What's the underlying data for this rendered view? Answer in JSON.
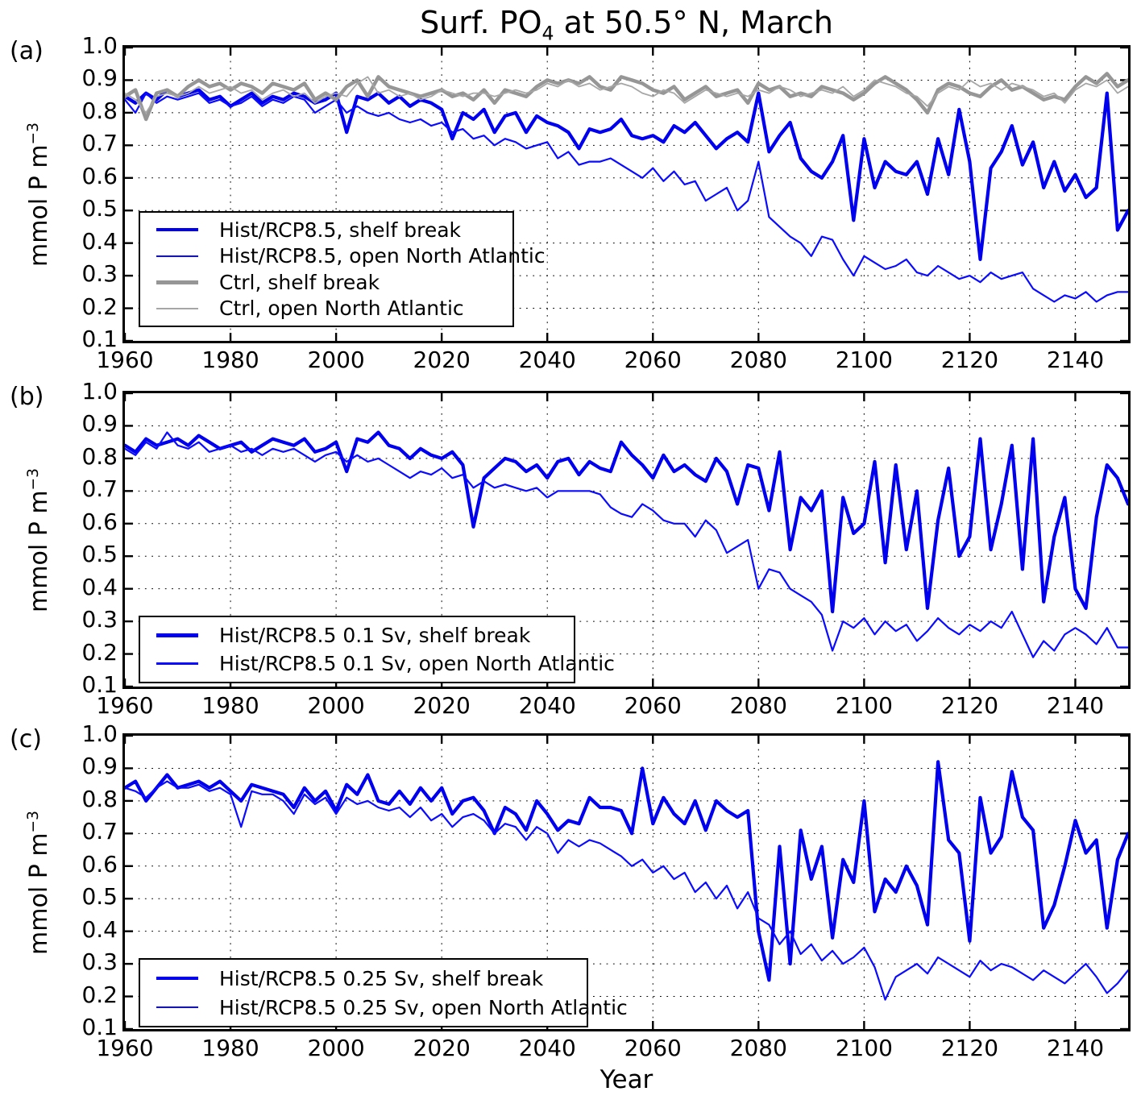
{
  "title": {
    "pre": "Surf. PO",
    "sub": "4",
    "post": " at 50.5° N, March"
  },
  "xlabel": "Year",
  "ylabel": {
    "base": "mmol P m",
    "exp": "−3"
  },
  "axes": {
    "xticks": [
      1960,
      1980,
      2000,
      2020,
      2040,
      2060,
      2080,
      2100,
      2120,
      2140
    ],
    "yticks": [
      0.1,
      0.2,
      0.3,
      0.4,
      0.5,
      0.6,
      0.7,
      0.8,
      0.9,
      1.0
    ],
    "xlim": [
      1960,
      2150
    ],
    "ylim": [
      0.1,
      1.0
    ],
    "grid": "dotted"
  },
  "chart_data": [
    {
      "type": "line",
      "label": "(a)",
      "x_start": 1960,
      "x_step": 2,
      "legend_position": "lower left",
      "series": [
        {
          "name": "hist-rcp85-shelf-break",
          "label": "Hist/RCP8.5, shelf break",
          "color": "#0000ee",
          "width": 4.2,
          "values": [
            0.85,
            0.83,
            0.86,
            0.84,
            0.87,
            0.85,
            0.86,
            0.87,
            0.84,
            0.85,
            0.82,
            0.84,
            0.86,
            0.83,
            0.85,
            0.84,
            0.86,
            0.85,
            0.83,
            0.84,
            0.86,
            0.74,
            0.85,
            0.84,
            0.86,
            0.83,
            0.85,
            0.82,
            0.84,
            0.83,
            0.81,
            0.72,
            0.8,
            0.78,
            0.81,
            0.74,
            0.79,
            0.8,
            0.74,
            0.79,
            0.77,
            0.76,
            0.74,
            0.69,
            0.75,
            0.74,
            0.75,
            0.78,
            0.73,
            0.72,
            0.73,
            0.71,
            0.76,
            0.74,
            0.77,
            0.73,
            0.69,
            0.72,
            0.74,
            0.71,
            0.86,
            0.68,
            0.73,
            0.77,
            0.66,
            0.62,
            0.6,
            0.65,
            0.73,
            0.47,
            0.72,
            0.57,
            0.65,
            0.62,
            0.61,
            0.65,
            0.55,
            0.72,
            0.61,
            0.81,
            0.65,
            0.35,
            0.63,
            0.68,
            0.76,
            0.64,
            0.71,
            0.57,
            0.65,
            0.56,
            0.61,
            0.54,
            0.57,
            0.86,
            0.44,
            0.5
          ]
        },
        {
          "name": "hist-rcp85-open-north-atlantic",
          "label": "Hist/RCP8.5, open North Atlantic",
          "color": "#0b0bff",
          "width": 2.2,
          "values": [
            0.84,
            0.8,
            0.86,
            0.83,
            0.85,
            0.84,
            0.85,
            0.86,
            0.83,
            0.84,
            0.82,
            0.83,
            0.85,
            0.82,
            0.84,
            0.83,
            0.85,
            0.84,
            0.8,
            0.82,
            0.84,
            0.8,
            0.82,
            0.8,
            0.79,
            0.8,
            0.78,
            0.77,
            0.78,
            0.76,
            0.77,
            0.74,
            0.75,
            0.72,
            0.73,
            0.7,
            0.72,
            0.71,
            0.69,
            0.7,
            0.71,
            0.66,
            0.68,
            0.64,
            0.65,
            0.65,
            0.66,
            0.64,
            0.62,
            0.6,
            0.63,
            0.59,
            0.62,
            0.58,
            0.59,
            0.53,
            0.55,
            0.57,
            0.5,
            0.53,
            0.65,
            0.48,
            0.45,
            0.42,
            0.4,
            0.36,
            0.42,
            0.41,
            0.35,
            0.3,
            0.36,
            0.34,
            0.32,
            0.33,
            0.35,
            0.31,
            0.3,
            0.33,
            0.31,
            0.29,
            0.3,
            0.28,
            0.31,
            0.29,
            0.3,
            0.31,
            0.26,
            0.24,
            0.22,
            0.24,
            0.23,
            0.25,
            0.22,
            0.24,
            0.25,
            0.25
          ]
        },
        {
          "name": "ctrl-shelf-break",
          "label": "Ctrl, shelf break",
          "color": "#969696",
          "width": 4.5,
          "values": [
            0.85,
            0.87,
            0.78,
            0.86,
            0.87,
            0.85,
            0.88,
            0.9,
            0.88,
            0.89,
            0.87,
            0.89,
            0.88,
            0.86,
            0.89,
            0.88,
            0.87,
            0.89,
            0.84,
            0.86,
            0.84,
            0.88,
            0.9,
            0.85,
            0.91,
            0.88,
            0.87,
            0.86,
            0.85,
            0.86,
            0.87,
            0.85,
            0.86,
            0.84,
            0.87,
            0.83,
            0.87,
            0.86,
            0.85,
            0.88,
            0.9,
            0.89,
            0.9,
            0.89,
            0.91,
            0.88,
            0.87,
            0.91,
            0.9,
            0.89,
            0.87,
            0.86,
            0.88,
            0.84,
            0.86,
            0.88,
            0.85,
            0.86,
            0.87,
            0.83,
            0.89,
            0.87,
            0.88,
            0.85,
            0.86,
            0.85,
            0.88,
            0.87,
            0.86,
            0.84,
            0.86,
            0.89,
            0.91,
            0.89,
            0.87,
            0.84,
            0.8,
            0.87,
            0.89,
            0.88,
            0.86,
            0.85,
            0.88,
            0.9,
            0.87,
            0.88,
            0.86,
            0.84,
            0.85,
            0.84,
            0.88,
            0.91,
            0.89,
            0.92,
            0.88,
            0.9
          ]
        },
        {
          "name": "ctrl-open-north-atlantic",
          "label": "Ctrl, open North Atlantic",
          "color": "#a6a6a6",
          "width": 1.8,
          "values": [
            0.86,
            0.84,
            0.8,
            0.85,
            0.86,
            0.85,
            0.86,
            0.88,
            0.86,
            0.87,
            0.88,
            0.86,
            0.87,
            0.84,
            0.86,
            0.87,
            0.85,
            0.86,
            0.83,
            0.85,
            0.86,
            0.85,
            0.89,
            0.91,
            0.86,
            0.87,
            0.85,
            0.86,
            0.84,
            0.85,
            0.87,
            0.86,
            0.85,
            0.86,
            0.86,
            0.85,
            0.86,
            0.87,
            0.86,
            0.87,
            0.89,
            0.88,
            0.9,
            0.88,
            0.89,
            0.87,
            0.88,
            0.89,
            0.88,
            0.86,
            0.85,
            0.87,
            0.86,
            0.83,
            0.85,
            0.87,
            0.86,
            0.85,
            0.86,
            0.85,
            0.87,
            0.86,
            0.88,
            0.87,
            0.85,
            0.86,
            0.87,
            0.86,
            0.88,
            0.85,
            0.87,
            0.9,
            0.89,
            0.88,
            0.86,
            0.85,
            0.82,
            0.86,
            0.88,
            0.87,
            0.9,
            0.88,
            0.89,
            0.87,
            0.89,
            0.88,
            0.87,
            0.85,
            0.86,
            0.83,
            0.87,
            0.89,
            0.88,
            0.9,
            0.86,
            0.88
          ]
        }
      ]
    },
    {
      "type": "line",
      "label": "(b)",
      "x_start": 1960,
      "x_step": 2,
      "legend_position": "lower left",
      "series": [
        {
          "name": "hist-rcp85-01sv-shelf-break",
          "label": "Hist/RCP8.5 0.1 Sv, shelf break",
          "color": "#0000ee",
          "width": 4.2,
          "values": [
            0.84,
            0.82,
            0.86,
            0.84,
            0.85,
            0.86,
            0.84,
            0.87,
            0.85,
            0.83,
            0.84,
            0.85,
            0.82,
            0.84,
            0.86,
            0.85,
            0.84,
            0.86,
            0.82,
            0.83,
            0.85,
            0.76,
            0.86,
            0.85,
            0.88,
            0.84,
            0.83,
            0.8,
            0.83,
            0.81,
            0.8,
            0.82,
            0.78,
            0.59,
            0.74,
            0.77,
            0.8,
            0.79,
            0.76,
            0.78,
            0.74,
            0.79,
            0.8,
            0.75,
            0.79,
            0.77,
            0.76,
            0.85,
            0.81,
            0.78,
            0.74,
            0.81,
            0.76,
            0.78,
            0.75,
            0.73,
            0.8,
            0.76,
            0.66,
            0.78,
            0.77,
            0.64,
            0.82,
            0.52,
            0.68,
            0.64,
            0.7,
            0.33,
            0.68,
            0.57,
            0.6,
            0.79,
            0.48,
            0.78,
            0.52,
            0.7,
            0.34,
            0.61,
            0.77,
            0.5,
            0.56,
            0.86,
            0.52,
            0.66,
            0.84,
            0.46,
            0.86,
            0.36,
            0.56,
            0.68,
            0.4,
            0.34,
            0.62,
            0.78,
            0.74,
            0.66
          ]
        },
        {
          "name": "hist-rcp85-01sv-open-north-atlantic",
          "label": "Hist/RCP8.5 0.1 Sv, open North Atlantic",
          "color": "#0b0bff",
          "width": 2.2,
          "values": [
            0.83,
            0.81,
            0.85,
            0.83,
            0.88,
            0.84,
            0.83,
            0.85,
            0.82,
            0.83,
            0.84,
            0.82,
            0.83,
            0.81,
            0.83,
            0.82,
            0.83,
            0.81,
            0.79,
            0.81,
            0.82,
            0.79,
            0.81,
            0.79,
            0.8,
            0.78,
            0.76,
            0.74,
            0.76,
            0.75,
            0.77,
            0.74,
            0.75,
            0.71,
            0.73,
            0.71,
            0.72,
            0.71,
            0.7,
            0.71,
            0.68,
            0.7,
            0.7,
            0.7,
            0.7,
            0.69,
            0.65,
            0.63,
            0.62,
            0.66,
            0.64,
            0.61,
            0.6,
            0.6,
            0.56,
            0.61,
            0.58,
            0.51,
            0.53,
            0.55,
            0.4,
            0.46,
            0.45,
            0.4,
            0.38,
            0.36,
            0.32,
            0.21,
            0.3,
            0.28,
            0.31,
            0.26,
            0.3,
            0.27,
            0.29,
            0.24,
            0.27,
            0.31,
            0.28,
            0.26,
            0.29,
            0.27,
            0.3,
            0.28,
            0.33,
            0.26,
            0.19,
            0.24,
            0.21,
            0.26,
            0.28,
            0.26,
            0.23,
            0.28,
            0.22,
            0.22
          ]
        }
      ]
    },
    {
      "type": "line",
      "label": "(c)",
      "x_start": 1960,
      "x_step": 2,
      "legend_position": "lower left",
      "series": [
        {
          "name": "hist-rcp85-025sv-shelf-break",
          "label": "Hist/RCP8.5 0.25 Sv, shelf break",
          "color": "#0000ee",
          "width": 4.2,
          "values": [
            0.84,
            0.86,
            0.8,
            0.84,
            0.88,
            0.84,
            0.85,
            0.86,
            0.84,
            0.86,
            0.83,
            0.8,
            0.85,
            0.84,
            0.83,
            0.82,
            0.78,
            0.84,
            0.8,
            0.83,
            0.77,
            0.85,
            0.82,
            0.88,
            0.8,
            0.79,
            0.83,
            0.79,
            0.84,
            0.8,
            0.84,
            0.76,
            0.8,
            0.81,
            0.77,
            0.7,
            0.78,
            0.76,
            0.71,
            0.8,
            0.76,
            0.71,
            0.74,
            0.73,
            0.81,
            0.78,
            0.78,
            0.77,
            0.7,
            0.9,
            0.73,
            0.81,
            0.76,
            0.73,
            0.8,
            0.71,
            0.8,
            0.77,
            0.75,
            0.77,
            0.4,
            0.25,
            0.66,
            0.3,
            0.71,
            0.56,
            0.66,
            0.38,
            0.62,
            0.55,
            0.8,
            0.46,
            0.56,
            0.52,
            0.6,
            0.54,
            0.42,
            0.92,
            0.68,
            0.64,
            0.37,
            0.81,
            0.64,
            0.69,
            0.89,
            0.75,
            0.71,
            0.41,
            0.48,
            0.6,
            0.74,
            0.64,
            0.68,
            0.41,
            0.62,
            0.7
          ]
        },
        {
          "name": "hist-rcp85-025sv-open-north-atlantic",
          "label": "Hist/RCP8.5 0.25 Sv, open North Atlantic",
          "color": "#0b0bff",
          "width": 2.2,
          "values": [
            0.84,
            0.83,
            0.81,
            0.84,
            0.86,
            0.84,
            0.84,
            0.85,
            0.83,
            0.84,
            0.82,
            0.72,
            0.83,
            0.82,
            0.82,
            0.8,
            0.76,
            0.82,
            0.79,
            0.81,
            0.76,
            0.81,
            0.79,
            0.8,
            0.78,
            0.77,
            0.78,
            0.75,
            0.78,
            0.74,
            0.76,
            0.72,
            0.75,
            0.76,
            0.74,
            0.7,
            0.73,
            0.72,
            0.68,
            0.72,
            0.7,
            0.64,
            0.68,
            0.66,
            0.68,
            0.67,
            0.65,
            0.63,
            0.6,
            0.62,
            0.58,
            0.6,
            0.56,
            0.58,
            0.52,
            0.55,
            0.5,
            0.54,
            0.47,
            0.52,
            0.44,
            0.42,
            0.36,
            0.4,
            0.33,
            0.36,
            0.31,
            0.34,
            0.3,
            0.32,
            0.35,
            0.29,
            0.19,
            0.26,
            0.28,
            0.3,
            0.27,
            0.32,
            0.3,
            0.28,
            0.26,
            0.31,
            0.28,
            0.3,
            0.29,
            0.27,
            0.25,
            0.28,
            0.26,
            0.24,
            0.27,
            0.3,
            0.26,
            0.21,
            0.24,
            0.28
          ]
        }
      ]
    }
  ]
}
